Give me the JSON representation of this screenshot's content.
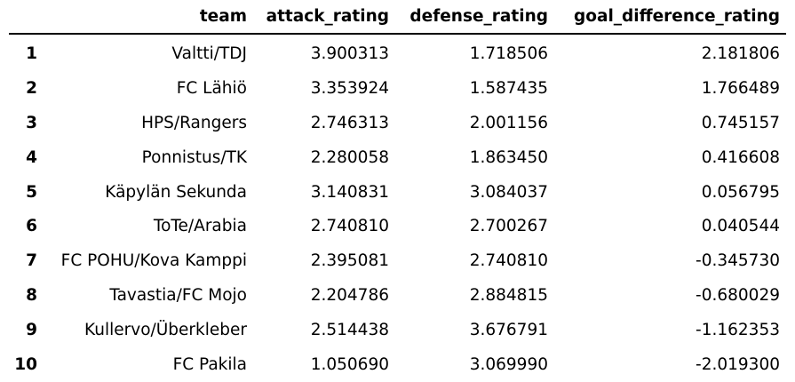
{
  "columns": {
    "index": "",
    "team": "team",
    "attack_rating": "attack_rating",
    "defense_rating": "defense_rating",
    "goal_difference_rating": "goal_difference_rating"
  },
  "rows": [
    {
      "index": "1",
      "team": "Valtti/TDJ",
      "attack_rating": "3.900313",
      "defense_rating": "1.718506",
      "goal_difference_rating": "2.181806"
    },
    {
      "index": "2",
      "team": "FC Lähiö",
      "attack_rating": "3.353924",
      "defense_rating": "1.587435",
      "goal_difference_rating": "1.766489"
    },
    {
      "index": "3",
      "team": "HPS/Rangers",
      "attack_rating": "2.746313",
      "defense_rating": "2.001156",
      "goal_difference_rating": "0.745157"
    },
    {
      "index": "4",
      "team": "Ponnistus/TK",
      "attack_rating": "2.280058",
      "defense_rating": "1.863450",
      "goal_difference_rating": "0.416608"
    },
    {
      "index": "5",
      "team": "Käpylän Sekunda",
      "attack_rating": "3.140831",
      "defense_rating": "3.084037",
      "goal_difference_rating": "0.056795"
    },
    {
      "index": "6",
      "team": "ToTe/Arabia",
      "attack_rating": "2.740810",
      "defense_rating": "2.700267",
      "goal_difference_rating": "0.040544"
    },
    {
      "index": "7",
      "team": "FC POHU/Kova Kamppi",
      "attack_rating": "2.395081",
      "defense_rating": "2.740810",
      "goal_difference_rating": "-0.345730"
    },
    {
      "index": "8",
      "team": "Tavastia/FC Mojo",
      "attack_rating": "2.204786",
      "defense_rating": "2.884815",
      "goal_difference_rating": "-0.680029"
    },
    {
      "index": "9",
      "team": "Kullervo/Überkleber",
      "attack_rating": "2.514438",
      "defense_rating": "3.676791",
      "goal_difference_rating": "-1.162353"
    },
    {
      "index": "10",
      "team": "FC Pakila",
      "attack_rating": "1.050690",
      "defense_rating": "3.069990",
      "goal_difference_rating": "-2.019300"
    }
  ]
}
